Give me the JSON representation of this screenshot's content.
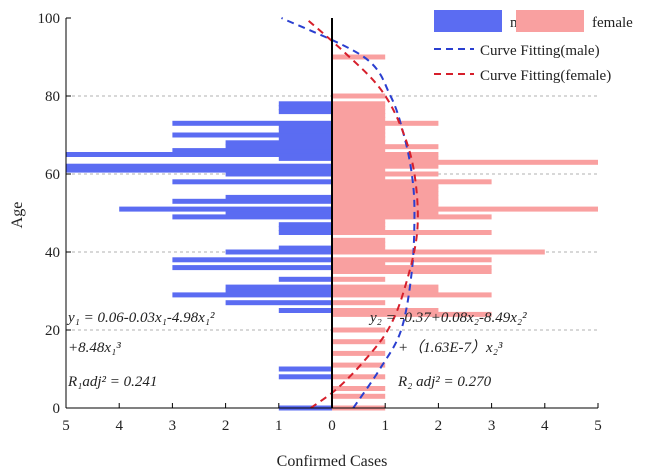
{
  "chart_data": {
    "type": "bar",
    "orientation": "horizontal-population-pyramid",
    "xlabel": "Confirmed Cases",
    "ylabel": "Age",
    "xlim": [
      -5,
      5
    ],
    "ylim": [
      0,
      100
    ],
    "x_ticks": [
      "5",
      "4",
      "3",
      "2",
      "1",
      "0",
      "1",
      "2",
      "3",
      "4",
      "5"
    ],
    "y_ticks": [
      "0",
      "20",
      "40",
      "60",
      "80",
      "100"
    ],
    "y_gridlines": [
      20,
      40,
      60,
      80
    ],
    "legend_position": "top-right",
    "legend": {
      "male": "male",
      "female": "female",
      "fit_male": "Curve Fitting(male)",
      "fit_female": "Curve Fitting(female)"
    },
    "colors": {
      "male": "#5b6cf2",
      "female": "#f9a0a0",
      "fit_male": "#2a3fd0",
      "fit_female": "#d61f2b",
      "grid": "#b0b0b0",
      "axis": "#000000"
    },
    "series": [
      {
        "name": "male",
        "ages": [
          0,
          8,
          10,
          25,
          27,
          29,
          30,
          31,
          33,
          36,
          38,
          40,
          41,
          45,
          46,
          47,
          49,
          50,
          51,
          53,
          54,
          58,
          60,
          61,
          62,
          64,
          65,
          66,
          67,
          68,
          69,
          70,
          71,
          72,
          73,
          76,
          77,
          78
        ],
        "values": [
          1,
          1,
          1,
          1,
          2,
          3,
          2,
          2,
          1,
          3,
          3,
          2,
          1,
          1,
          1,
          1,
          3,
          2,
          4,
          3,
          2,
          3,
          2,
          5,
          5,
          1,
          5,
          3,
          2,
          2,
          1,
          3,
          1,
          1,
          3,
          1,
          1,
          1
        ]
      },
      {
        "name": "female",
        "ages": [
          0,
          3,
          5,
          8,
          11,
          14,
          17,
          20,
          24,
          25,
          27,
          29,
          30,
          31,
          33,
          35,
          36,
          37,
          38,
          40,
          41,
          42,
          43,
          45,
          46,
          47,
          48,
          49,
          50,
          51,
          52,
          53,
          54,
          55,
          56,
          57,
          58,
          59,
          60,
          61,
          62,
          63,
          64,
          65,
          66,
          67,
          68,
          69,
          70,
          71,
          72,
          73,
          74,
          75,
          76,
          77,
          78,
          80,
          90
        ],
        "values": [
          1,
          1,
          1,
          1,
          1,
          1,
          1,
          1,
          3,
          2,
          1,
          3,
          2,
          2,
          1,
          3,
          3,
          1,
          3,
          4,
          1,
          1,
          1,
          3,
          1,
          1,
          1,
          3,
          2,
          5,
          2,
          2,
          2,
          2,
          2,
          2,
          3,
          1,
          2,
          1,
          2,
          5,
          2,
          2,
          1,
          2,
          1,
          1,
          1,
          1,
          1,
          2,
          1,
          1,
          1,
          1,
          1,
          1,
          1
        ]
      }
    ],
    "fit_curves": [
      {
        "name": "Curve Fitting(male)",
        "points": [
          [
            0.4,
            0
          ],
          [
            0.9,
            10
          ],
          [
            1.3,
            20
          ],
          [
            1.5,
            35
          ],
          [
            1.55,
            50
          ],
          [
            1.5,
            60
          ],
          [
            1.35,
            70
          ],
          [
            1.1,
            80
          ],
          [
            0.6,
            90
          ],
          [
            -0.95,
            100
          ]
        ]
      },
      {
        "name": "Curve Fitting(female)",
        "points": [
          [
            -0.4,
            0
          ],
          [
            0.1,
            5
          ],
          [
            0.6,
            12
          ],
          [
            1.05,
            20
          ],
          [
            1.35,
            30
          ],
          [
            1.6,
            45
          ],
          [
            1.55,
            60
          ],
          [
            1.3,
            72
          ],
          [
            0.9,
            82
          ],
          [
            0.25,
            91
          ],
          [
            -0.5,
            100
          ]
        ]
      }
    ],
    "annotations": {
      "male_eq_line1": "y₁ = 0.06-0.03x₁-4.98x₁²",
      "male_eq_line2": "+8.48x₁³",
      "male_r2": "R₁adj² = 0.241",
      "female_eq_line1": "y₂ = -0.37+0.08x₂-8.49x₂²",
      "female_eq_line2": "+（1.63E-7）x₂³",
      "female_r2": "R₂ adj² = 0.270"
    }
  }
}
